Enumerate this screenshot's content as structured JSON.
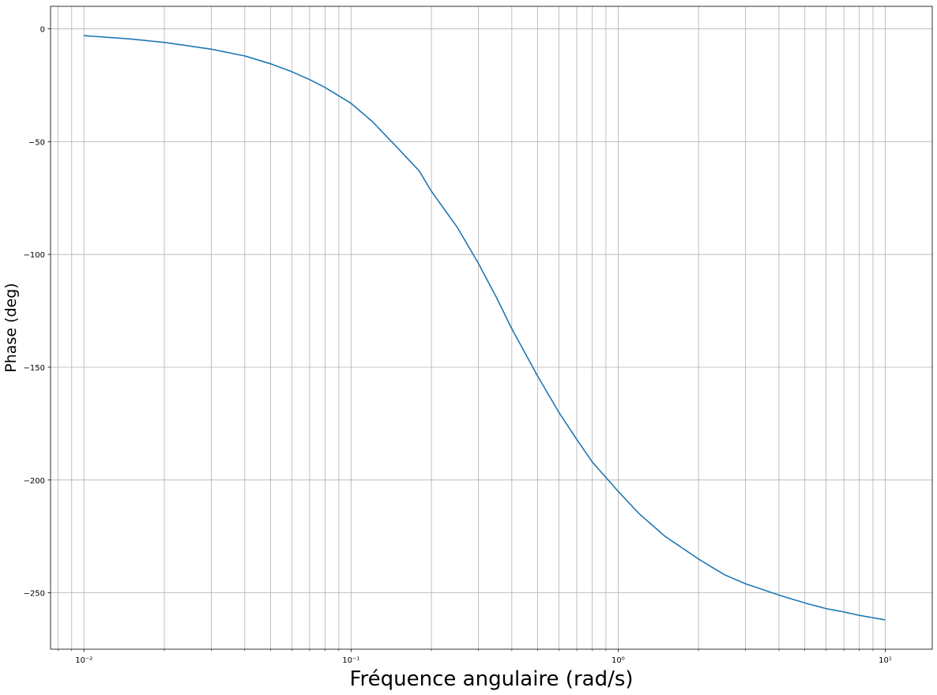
{
  "chart_data": {
    "type": "line",
    "title": "",
    "xlabel": "Fréquence angulaire (rad/s)",
    "ylabel": "Phase (deg)",
    "x_scale": "log",
    "xlim": [
      0.0075,
      15
    ],
    "ylim": [
      -275,
      10
    ],
    "grid": "major and minor (x)",
    "x_ticks": [
      {
        "value": 0.01,
        "label": "10⁻²"
      },
      {
        "value": 0.1,
        "label": "10⁻¹"
      },
      {
        "value": 1,
        "label": "10⁰"
      },
      {
        "value": 10,
        "label": "10¹"
      }
    ],
    "y_ticks": [
      0,
      -50,
      -100,
      -150,
      -200,
      -250
    ],
    "line_color": "#1f77b4",
    "series": [
      {
        "x": [
          0.01,
          0.015,
          0.02,
          0.03,
          0.04,
          0.05,
          0.06,
          0.07,
          0.08,
          0.1,
          0.12,
          0.15,
          0.18,
          0.2,
          0.25,
          0.3,
          0.35,
          0.4,
          0.5,
          0.6,
          0.7,
          0.8,
          1,
          1.2,
          1.5,
          2,
          2.5,
          3,
          4,
          5,
          6,
          7,
          8,
          10
        ],
        "y": [
          -3,
          -4.5,
          -6,
          -9,
          -12,
          -15.5,
          -19,
          -22.5,
          -26,
          -33,
          -41,
          -53,
          -63,
          -72,
          -88,
          -104,
          -119,
          -133,
          -154,
          -170,
          -182,
          -192,
          -205,
          -215,
          -225,
          -235,
          -242,
          -246,
          -251,
          -254.5,
          -257,
          -258.5,
          -260,
          -262
        ]
      }
    ]
  }
}
